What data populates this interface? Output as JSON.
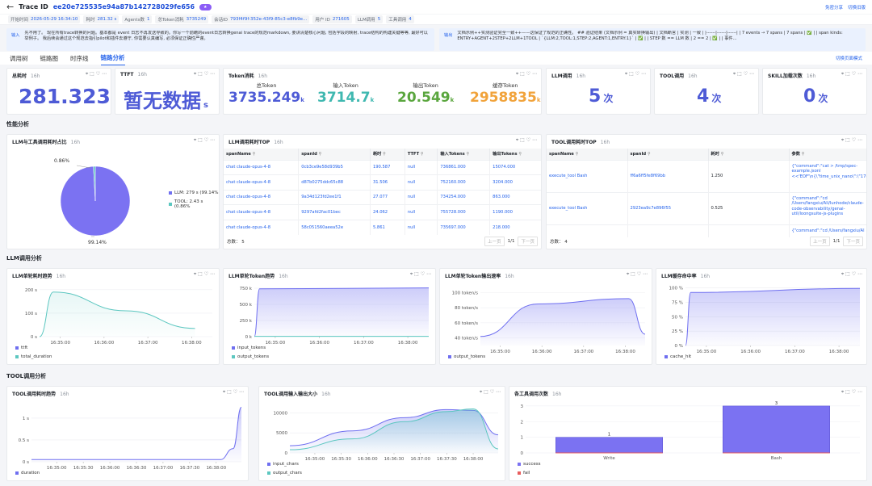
{
  "header": {
    "back_icon": "←",
    "trace_label": "Trace ID",
    "trace_id": "ee20e725535e94a87b142728029fe656",
    "pill": "★",
    "share": "免密分享",
    "switch": "切换旧版"
  },
  "meta": [
    {
      "k": "开始时间",
      "v": "2026-05-29 16:34:10"
    },
    {
      "k": "耗时",
      "v": "281.32 s"
    },
    {
      "k": "Agents数",
      "v": "1"
    },
    {
      "k": "总Token消耗",
      "v": "3735249"
    },
    {
      "k": "会话ID",
      "v": "793f4f9f-352e-43f9-85c3-e8fb9e..."
    },
    {
      "k": "用户 ID",
      "v": "271605"
    },
    {
      "k": "LLM调用",
      "v": "5"
    },
    {
      "k": "工具调用",
      "v": "4"
    }
  ],
  "io": {
    "input_label": "输入",
    "input_text": "先不用了。 现在所有trace转换的问题。基本都是 event 日志不再发送导致的。你写一个前瞻的event日志转换genai trace的规范markdown, 要讲清楚核心问题, 包括字段的映射, trace结构的构建关键等等, 最好可以举例子。 我后续会通过这个规范去指引pilot和插件去遵守, 你需要认真编写, 必须保证正确性严谨。",
    "output_label": "输出",
    "output_text": "文档示例++实测验证完全一致++——这保证了规范的正确性。 ## 验证结果 (文档示例 = 真实转换输出) | 文档断言 | 实测 | 一致 | |------|------|------| | 7 events → 7 spans | 7 spans | ✅ | | span kinds: ENTRY+AGENT+2STEP+2LLM+1TOOL | `{LLM:2,TOOL:1,STEP:2,AGENT:1,ENTRY:1}` | ✅ | | STEP 数 == LLM 数 | 2 == 2 | ✅ | | 事件..."
  },
  "tabs": {
    "items": [
      "调用树",
      "链路图",
      "时序线",
      "链路分析"
    ],
    "active": 3,
    "right": "切换页面模式"
  },
  "stat_cards": {
    "total_time": {
      "title": "总耗时",
      "ago": "16h",
      "value": "281.323",
      "unit": "s"
    },
    "ttft": {
      "title": "TTFT",
      "ago": "16h",
      "value": "暂无数据",
      "unit": "s"
    },
    "token": {
      "title": "Token消耗",
      "ago": "16h",
      "items": [
        {
          "label": "总Token",
          "value": "3735.249",
          "unit": "k",
          "color": "#4e5bd6"
        },
        {
          "label": "输入Token",
          "value": "3714.7",
          "unit": "k",
          "color": "#3fb8b0"
        },
        {
          "label": "输出Token",
          "value": "20.549",
          "unit": "k",
          "color": "#5aa63e"
        },
        {
          "label": "缓存Token",
          "value": "2958835",
          "unit": "k",
          "color": "#f1a33b"
        }
      ]
    },
    "llm_calls": {
      "title": "LLM调用",
      "ago": "16h",
      "value": "5",
      "unit": "次"
    },
    "tool_calls": {
      "title": "TOOL调用",
      "ago": "16h",
      "value": "4",
      "unit": "次"
    },
    "skill_loads": {
      "title": "SKILL加载次数",
      "ago": "16h",
      "value": "0",
      "unit": "次"
    }
  },
  "sections": {
    "perf": "性能分析",
    "llm": "LLM调用分析",
    "tool": "TOOL调用分析"
  },
  "pie": {
    "title": "LLM与工具调用耗时占比",
    "ago": "16h",
    "label_top": "0.86%",
    "label_bottom": "99.14%",
    "legend": [
      {
        "name": "LLM: 279 s (99.14%",
        "color": "#6f6ff0"
      },
      {
        "name": "TOOL: 2.43 s (0.86%",
        "color": "#5cc7c0"
      }
    ]
  },
  "chart_data": [
    {
      "type": "pie",
      "slices": [
        {
          "name": "LLM",
          "value": 279,
          "percent": 99.14,
          "color": "#7b72f2"
        },
        {
          "name": "TOOL",
          "value": 2.43,
          "percent": 0.86,
          "color": "#5cc7c0"
        }
      ]
    },
    {
      "type": "line",
      "title": "LLM单轮耗时趋势",
      "ago": "16h",
      "yticks": [
        "200 s",
        "100 s",
        "0 s"
      ],
      "ylim": [
        0,
        220
      ],
      "xticks": [
        "16:35:00",
        "16:36:00",
        "16:37:00",
        "16:38:00"
      ],
      "series": [
        {
          "name": "ttft",
          "color": "#6f6ff0",
          "values": []
        },
        {
          "name": "total_duration",
          "color": "#5cc7c0",
          "x": [
            0,
            0.08,
            0.5,
            0.9
          ],
          "values": [
            0,
            190,
            110,
            35
          ]
        }
      ]
    },
    {
      "type": "area",
      "title": "LLM单轮Token趋势",
      "ago": "16h",
      "yticks": [
        "750 k",
        "500 k",
        "250 k",
        "0 k"
      ],
      "ylim": [
        0,
        800
      ],
      "xticks": [
        "16:35:00",
        "16:36:00",
        "16:37:00",
        "16:38:00"
      ],
      "series": [
        {
          "name": "input_tokens",
          "color": "#6f6ff0",
          "x": [
            0,
            0.03,
            1
          ],
          "values": [
            0,
            740,
            755
          ]
        },
        {
          "name": "output_tokens",
          "color": "#5cc7c0",
          "x": [
            0,
            1
          ],
          "values": [
            5,
            5
          ]
        }
      ]
    },
    {
      "type": "area",
      "title": "LLM单轮Token输出速率",
      "ago": "16h",
      "yticks": [
        "100 token/s",
        "80 token/s",
        "60 token/s",
        "40 token/s"
      ],
      "ylim": [
        30,
        110
      ],
      "xticks": [
        "16:35:00",
        "16:36:00",
        "16:37:00",
        "16:38:00"
      ],
      "series": [
        {
          "name": "output_tokens",
          "color": "#6f6ff0",
          "x": [
            0,
            0.35,
            0.9,
            1
          ],
          "values": [
            42,
            85,
            92,
            45
          ]
        }
      ]
    },
    {
      "type": "area",
      "title": "LLM缓存命中率",
      "ago": "16h",
      "yticks": [
        "100 %",
        "75 %",
        "50 %",
        "25 %",
        "0 %"
      ],
      "ylim": [
        0,
        105
      ],
      "xticks": [
        "16:35:00",
        "16:36:00",
        "16:37:00",
        "16:38:00"
      ],
      "series": [
        {
          "name": "cache_hit",
          "color": "#6f6ff0",
          "x": [
            0,
            0.03,
            1
          ],
          "values": [
            0,
            92,
            99
          ]
        }
      ]
    },
    {
      "type": "area",
      "title": "TOOL调用耗时趋势",
      "ago": "16h",
      "yticks": [
        "1 s",
        "0.5 s",
        "0 s"
      ],
      "ylim": [
        0,
        1.35
      ],
      "xticks": [
        "16:35:00",
        "16:35:30",
        "16:36:00",
        "16:36:30",
        "16:37:00",
        "16:37:30",
        "16:38:00"
      ],
      "series": [
        {
          "name": "duration",
          "color": "#6f6ff0",
          "x": [
            0,
            0.9,
            0.96,
            1
          ],
          "values": [
            0.05,
            0.05,
            0.3,
            1.25
          ]
        }
      ]
    },
    {
      "type": "area",
      "title": "TOOL调用输入输出大小",
      "ago": "16h",
      "yticks": [
        "10000",
        "5000",
        "0"
      ],
      "ylim": [
        0,
        12500
      ],
      "xticks": [
        "16:35:00",
        "16:35:30",
        "16:36:00",
        "16:36:30",
        "16:37:00",
        "16:37:30",
        "16:38:00"
      ],
      "series": [
        {
          "name": "input_chars",
          "color": "#6f6ff0",
          "x": [
            0,
            0.3,
            0.55,
            0.75,
            0.88,
            1
          ],
          "values": [
            1800,
            5500,
            8800,
            10800,
            10600,
            4500
          ]
        },
        {
          "name": "output_chars",
          "color": "#5cc7c0",
          "x": [
            0,
            0.3,
            0.55,
            0.75,
            0.88,
            1
          ],
          "values": [
            800,
            3500,
            7800,
            10300,
            11000,
            1000
          ]
        }
      ]
    },
    {
      "type": "bar",
      "title": "各工具调用次数",
      "ago": "16h",
      "categories": [
        "Write",
        "Bash"
      ],
      "yticks": [
        "3",
        "2",
        "1",
        "0"
      ],
      "ylim": [
        0,
        3.2
      ],
      "series": [
        {
          "name": "success",
          "color": "#7b72f2",
          "values": [
            1,
            3
          ]
        },
        {
          "name": "fail",
          "color": "#e85c5c",
          "values": [
            0,
            0
          ]
        }
      ],
      "data_labels": [
        "1",
        "3"
      ]
    }
  ],
  "llm_table": {
    "title": "LLM调用耗时TOP",
    "ago": "16h",
    "columns": [
      "spanName",
      "spanId",
      "耗时",
      "TTFT",
      "输入Tokens",
      "输出Tokens"
    ],
    "rows": [
      [
        "chat claude-opus-4-8",
        "0cb3ce9e58d939b5",
        "190.587",
        "null",
        "736861.000",
        "15074.000"
      ],
      [
        "chat claude-opus-4-8",
        "d87b0275ddc65c88",
        "31.506",
        "null",
        "752160.000",
        "3204.000"
      ],
      [
        "chat claude-opus-4-8",
        "9a34d123fd2ee1f1",
        "27.077",
        "null",
        "734254.000",
        "863.000"
      ],
      [
        "chat claude-opus-4-8",
        "9297afd2fac01bec",
        "24.062",
        "null",
        "755728.000",
        "1190.000"
      ],
      [
        "chat claude-opus-4-8",
        "58c051560aeea52e",
        "5.861",
        "null",
        "735697.000",
        "218.000"
      ]
    ],
    "total": "总数： 5",
    "prev": "上一页",
    "page": "1/1",
    "next": "下一页"
  },
  "tool_table": {
    "title": "TOOL调用耗时TOP",
    "ago": "16h",
    "columns": [
      "spanName",
      "spanId",
      "耗时",
      "参数"
    ],
    "rows": [
      [
        "execute_tool Bash",
        "ff6a6ff5fe8f69bb",
        "1.250",
        "{\"command\":\"cat > /tmp/spec-example.jsonl <<'EOF'\\n{\\\"time_unix_nano\\\":\\\"1780000000000000000\\\",\\\"eve"
      ],
      [
        "execute_tool Bash",
        "2923ea9c7e896f55",
        "0.525",
        "{\"command\":\"cd /Users/fangxiu/Ali/Iunhode/claude-code-observability/genai-util/loongsuite-js-plugins"
      ],
      [
        "",
        "",
        "",
        "{\"command\":\"cd /Users/fangxiu/Al"
      ]
    ],
    "total": "总数： 4",
    "prev": "上一页",
    "page": "1/1",
    "next": "下一页"
  },
  "icons": {
    "card_icons": "⌖ ⬚ ♡ ⋯"
  }
}
